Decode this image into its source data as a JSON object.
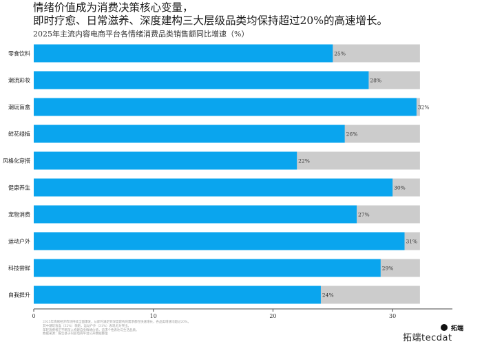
{
  "header": {
    "title_line1": "情绪价值成为消费决策核心变量，",
    "title_line2": "即时疗愈、日常滋养、深度建构三大层级品类均保持超过20%的高速增长。"
  },
  "footnotes": [
    "2025年情绪经济市场持续全面爆发，从即时满足到深度建构的需求都在快速增长，各品类增速均超过20%。",
    "其中潮玩盲盒（32%）领跑，运动户外（31%）表现尤为突出。",
    "年轻消费者正不断深入构建自身情绪价值，追求个性表达与生活品质。",
    "数据来源：报告基于内容电商平台公开数据整理"
  ],
  "watermark": {
    "logo": "拓端",
    "text": "拓端tecdat"
  },
  "colors": {
    "bar": "#0aa5ee",
    "track": "#cccccc",
    "axis": "#444444"
  },
  "chart_data": {
    "type": "bar",
    "orientation": "horizontal",
    "title": "2025年主流内容电商平台各情绪消费品类销售额同比增速（%）",
    "categories": [
      "零食饮料",
      "潮流彩妆",
      "潮玩盲盒",
      "鲜花绿植",
      "风格化穿搭",
      "健康养生",
      "宠物消费",
      "运动户外",
      "科技尝鲜",
      "自我提升"
    ],
    "values": [
      25,
      28,
      32,
      26,
      22,
      30,
      27,
      31,
      29,
      24
    ],
    "data_labels": [
      "25%",
      "28%",
      "32%",
      "26%",
      "22%",
      "30%",
      "27%",
      "31%",
      "29%",
      "24%"
    ],
    "track_max": 32,
    "xlim": [
      0,
      35
    ],
    "xticks": [
      0,
      10,
      20,
      30
    ],
    "xlabel": "",
    "ylabel": "",
    "grid": false,
    "legend": "none"
  }
}
